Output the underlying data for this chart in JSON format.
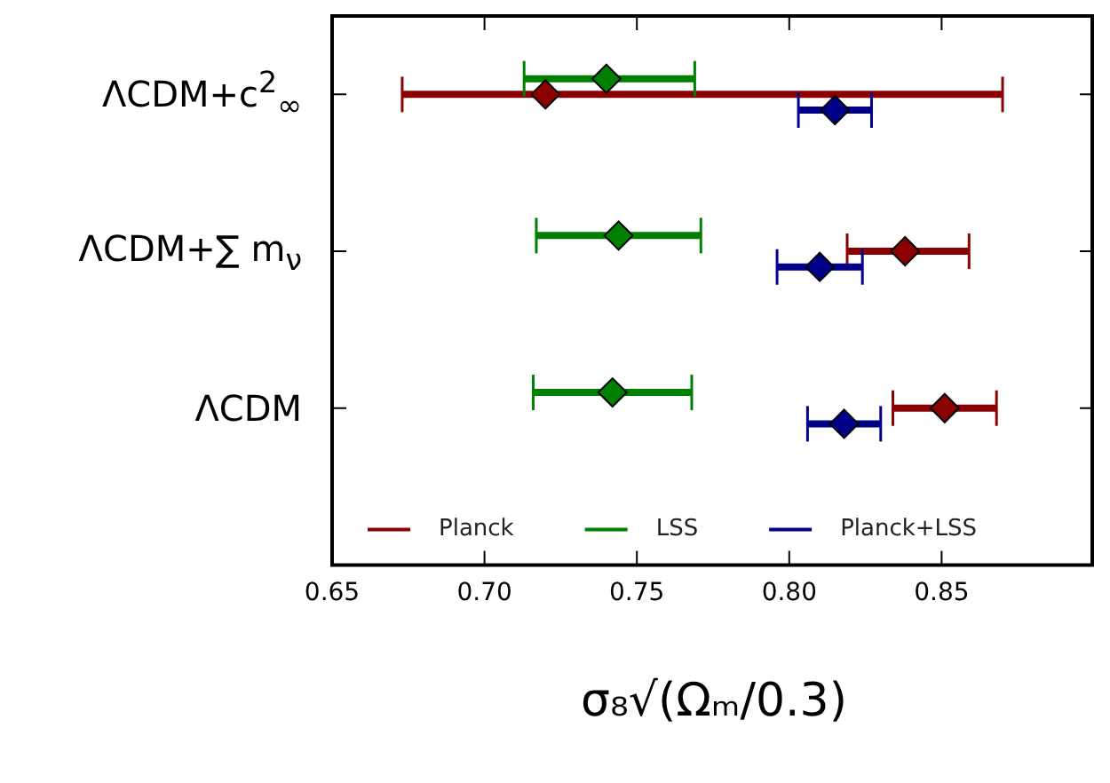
{
  "chart_data": {
    "type": "scatter",
    "orientation": "horizontal",
    "xlabel": "σ₈√(Ωₘ/0.3)",
    "categories": [
      "ΛCDM+c$^{2}$$_{∞}$",
      "ΛCDM+∑ m$_{ν}$",
      "ΛCDM"
    ],
    "series": [
      {
        "name": "Planck",
        "color": "#8b0000",
        "values": [
          0.72,
          0.838,
          0.851
        ],
        "errors": [
          [
            0.673,
            0.87
          ],
          [
            0.819,
            0.859
          ],
          [
            0.834,
            0.868
          ]
        ]
      },
      {
        "name": "LSS",
        "color": "#008000",
        "values": [
          0.74,
          0.744,
          0.742
        ],
        "errors": [
          [
            0.713,
            0.769
          ],
          [
            0.717,
            0.771
          ],
          [
            0.716,
            0.768
          ]
        ]
      },
      {
        "name": "Planck+LSS",
        "color": "#00008b",
        "values": [
          0.815,
          0.81,
          0.818
        ],
        "errors": [
          [
            0.803,
            0.827
          ],
          [
            0.796,
            0.824
          ],
          [
            0.806,
            0.83
          ]
        ]
      }
    ],
    "xlim": [
      0.65,
      0.9
    ],
    "xticks": [
      {
        "value": 0.65,
        "label": "0.65"
      },
      {
        "value": 0.7,
        "label": "0.70"
      },
      {
        "value": 0.75,
        "label": "0.75"
      },
      {
        "value": 0.8,
        "label": "0.80"
      },
      {
        "value": 0.85,
        "label": "0.85"
      }
    ],
    "marker": "diamond",
    "legend": "bottom",
    "grid": false
  }
}
